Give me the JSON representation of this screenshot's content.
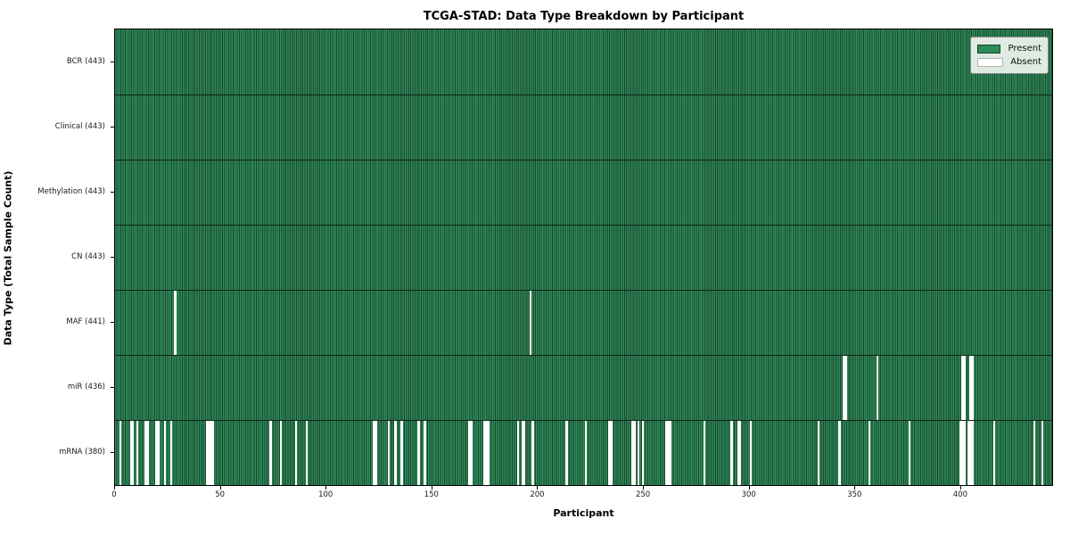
{
  "title": "TCGA-STAD: Data Type Breakdown by Participant",
  "xlabel": "Participant",
  "ylabel": "Data Type (Total Sample Count)",
  "colors": {
    "present": "#2e8b57",
    "present_edge": "#1b4630",
    "absent": "#ffffff",
    "legend_bg": "#f4f8f4"
  },
  "legend": [
    {
      "label": "Present",
      "color": "#2e8b57"
    },
    {
      "label": "Absent",
      "color": "#ffffff"
    }
  ],
  "chart_data": {
    "type": "heatmap",
    "title": "TCGA-STAD: Data Type Breakdown by Participant",
    "xlabel": "Participant",
    "ylabel": "Data Type (Total Sample Count)",
    "x_ticks": [
      0,
      50,
      100,
      150,
      200,
      250,
      300,
      350,
      400
    ],
    "n_participants": 443,
    "xlim": [
      0,
      443
    ],
    "legend_position": "upper right",
    "grid": false,
    "rows": [
      {
        "label": "BCR (443)",
        "name": "BCR",
        "total": 443,
        "absent": []
      },
      {
        "label": "Clinical (443)",
        "name": "Clinical",
        "total": 443,
        "absent": []
      },
      {
        "label": "Methylation (443)",
        "name": "Methylation",
        "total": 443,
        "absent": []
      },
      {
        "label": "CN (443)",
        "name": "CN",
        "total": 443,
        "absent": []
      },
      {
        "label": "MAF (441)",
        "name": "MAF",
        "total": 441,
        "absent": [
          28,
          196
        ]
      },
      {
        "label": "miR (436)",
        "name": "miR",
        "total": 436,
        "absent": [
          344,
          345,
          360,
          400,
          401,
          404,
          405
        ]
      },
      {
        "label": "mRNA (380)",
        "name": "mRNA",
        "total": 380,
        "absent": [
          2,
          7,
          8,
          10,
          14,
          15,
          19,
          20,
          23,
          26,
          43,
          44,
          45,
          46,
          73,
          78,
          85,
          90,
          122,
          123,
          129,
          132,
          135,
          143,
          146,
          167,
          168,
          174,
          175,
          176,
          190,
          192,
          193,
          197,
          213,
          222,
          233,
          234,
          244,
          245,
          247,
          249,
          260,
          261,
          262,
          278,
          291,
          294,
          295,
          300,
          332,
          342,
          356,
          375,
          399,
          400,
          401,
          403,
          404,
          405,
          415,
          434,
          438
        ]
      }
    ]
  }
}
